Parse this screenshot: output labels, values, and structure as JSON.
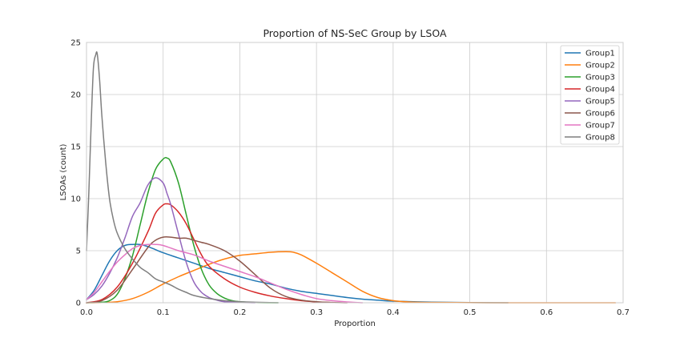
{
  "chart_data": {
    "type": "line",
    "title": "Proportion of NS-SeC Group by LSOA",
    "xlabel": "Proportion",
    "ylabel": "LSOAs (count)",
    "xlim": [
      0.0,
      0.7
    ],
    "ylim": [
      0,
      25
    ],
    "xticks": [
      "0.0",
      "0.1",
      "0.2",
      "0.3",
      "0.4",
      "0.5",
      "0.6",
      "0.7"
    ],
    "yticks": [
      "0",
      "5",
      "10",
      "15",
      "20",
      "25"
    ],
    "grid": true,
    "legend_position": "top-right",
    "series": [
      {
        "name": "Group1",
        "color": "#1f77b4",
        "x": [
          0,
          0.01,
          0.02,
          0.03,
          0.04,
          0.05,
          0.06,
          0.07,
          0.08,
          0.09,
          0.1,
          0.12,
          0.14,
          0.16,
          0.18,
          0.2,
          0.22,
          0.24,
          0.26,
          0.28,
          0.3,
          0.32,
          0.34,
          0.36,
          0.38,
          0.4,
          0.45,
          0.5,
          0.55
        ],
        "y": [
          0.3,
          1.2,
          2.6,
          4.0,
          5.0,
          5.5,
          5.6,
          5.6,
          5.4,
          5.1,
          4.8,
          4.3,
          3.8,
          3.3,
          2.9,
          2.5,
          2.1,
          1.8,
          1.4,
          1.1,
          0.9,
          0.7,
          0.5,
          0.35,
          0.25,
          0.15,
          0.06,
          0.02,
          0.0
        ]
      },
      {
        "name": "Group2",
        "color": "#ff7f0e",
        "x": [
          0,
          0.02,
          0.04,
          0.06,
          0.08,
          0.1,
          0.12,
          0.14,
          0.16,
          0.18,
          0.2,
          0.22,
          0.24,
          0.26,
          0.27,
          0.28,
          0.3,
          0.32,
          0.34,
          0.36,
          0.38,
          0.4,
          0.42,
          0.45,
          0.5,
          0.55,
          0.6,
          0.69
        ],
        "y": [
          0,
          0.02,
          0.1,
          0.4,
          1.0,
          1.8,
          2.5,
          3.1,
          3.7,
          4.2,
          4.55,
          4.7,
          4.85,
          4.9,
          4.85,
          4.6,
          3.8,
          2.9,
          2.0,
          1.1,
          0.5,
          0.2,
          0.08,
          0.03,
          0.01,
          0.0,
          0.0,
          0.0
        ]
      },
      {
        "name": "Group3",
        "color": "#2ca02c",
        "x": [
          0,
          0.02,
          0.03,
          0.04,
          0.05,
          0.06,
          0.07,
          0.08,
          0.09,
          0.1,
          0.105,
          0.11,
          0.12,
          0.13,
          0.14,
          0.15,
          0.16,
          0.17,
          0.18,
          0.19,
          0.2,
          0.22,
          0.25
        ],
        "y": [
          0,
          0.05,
          0.2,
          0.8,
          2.3,
          4.5,
          7.5,
          10.5,
          12.8,
          13.8,
          13.9,
          13.5,
          11.5,
          8.5,
          5.5,
          3.2,
          1.7,
          0.9,
          0.45,
          0.2,
          0.1,
          0.02,
          0.0
        ]
      },
      {
        "name": "Group4",
        "color": "#d62728",
        "x": [
          0,
          0.02,
          0.04,
          0.06,
          0.08,
          0.09,
          0.1,
          0.105,
          0.11,
          0.12,
          0.13,
          0.14,
          0.15,
          0.16,
          0.18,
          0.2,
          0.22,
          0.24,
          0.26,
          0.28,
          0.3,
          0.32
        ],
        "y": [
          0,
          0.3,
          1.5,
          3.8,
          6.8,
          8.6,
          9.4,
          9.5,
          9.4,
          8.7,
          7.6,
          6.1,
          4.6,
          3.5,
          2.3,
          1.5,
          1.0,
          0.65,
          0.4,
          0.2,
          0.08,
          0.02
        ]
      },
      {
        "name": "Group5",
        "color": "#9467bd",
        "x": [
          0,
          0.01,
          0.02,
          0.03,
          0.04,
          0.05,
          0.06,
          0.07,
          0.08,
          0.09,
          0.1,
          0.105,
          0.11,
          0.12,
          0.13,
          0.14,
          0.15,
          0.16,
          0.17,
          0.18,
          0.2,
          0.22
        ],
        "y": [
          0.3,
          0.8,
          1.6,
          2.8,
          4.3,
          6.2,
          8.3,
          9.6,
          11.3,
          12.0,
          11.5,
          10.5,
          9.4,
          6.6,
          3.9,
          2.0,
          1.0,
          0.5,
          0.25,
          0.1,
          0.03,
          0.0
        ]
      },
      {
        "name": "Group6",
        "color": "#8c564b",
        "x": [
          0,
          0.02,
          0.04,
          0.06,
          0.08,
          0.09,
          0.1,
          0.11,
          0.12,
          0.13,
          0.14,
          0.15,
          0.16,
          0.18,
          0.2,
          0.22,
          0.24,
          0.26,
          0.28,
          0.3,
          0.32,
          0.34
        ],
        "y": [
          0,
          0.2,
          1.2,
          3.2,
          5.3,
          6.0,
          6.3,
          6.3,
          6.2,
          6.2,
          6.0,
          5.8,
          5.6,
          5.0,
          4.0,
          2.7,
          1.4,
          0.6,
          0.25,
          0.1,
          0.03,
          0.0
        ]
      },
      {
        "name": "Group7",
        "color": "#e377c2",
        "x": [
          0,
          0.01,
          0.02,
          0.03,
          0.04,
          0.05,
          0.06,
          0.07,
          0.08,
          0.09,
          0.1,
          0.12,
          0.14,
          0.16,
          0.18,
          0.2,
          0.22,
          0.24,
          0.26,
          0.28,
          0.3,
          0.32,
          0.34,
          0.36
        ],
        "y": [
          0.3,
          1.0,
          2.0,
          3.0,
          3.9,
          4.6,
          5.2,
          5.5,
          5.6,
          5.6,
          5.5,
          5.0,
          4.6,
          4.0,
          3.5,
          3.0,
          2.5,
          1.9,
          1.3,
          0.8,
          0.4,
          0.2,
          0.08,
          0.0
        ]
      },
      {
        "name": "Group8",
        "color": "#7f7f7f",
        "x": [
          0,
          0.003,
          0.006,
          0.009,
          0.012,
          0.014,
          0.017,
          0.02,
          0.025,
          0.03,
          0.035,
          0.04,
          0.05,
          0.06,
          0.07,
          0.08,
          0.09,
          0.1,
          0.11,
          0.12,
          0.13,
          0.14,
          0.16,
          0.18,
          0.2,
          0.22,
          0.25
        ],
        "y": [
          5.0,
          10.5,
          17.0,
          22.5,
          23.8,
          23.9,
          21.5,
          18.0,
          13.5,
          10.0,
          8.0,
          6.7,
          5.2,
          4.2,
          3.4,
          2.9,
          2.3,
          2.0,
          1.7,
          1.3,
          1.0,
          0.7,
          0.4,
          0.2,
          0.1,
          0.05,
          0.0
        ]
      }
    ]
  }
}
